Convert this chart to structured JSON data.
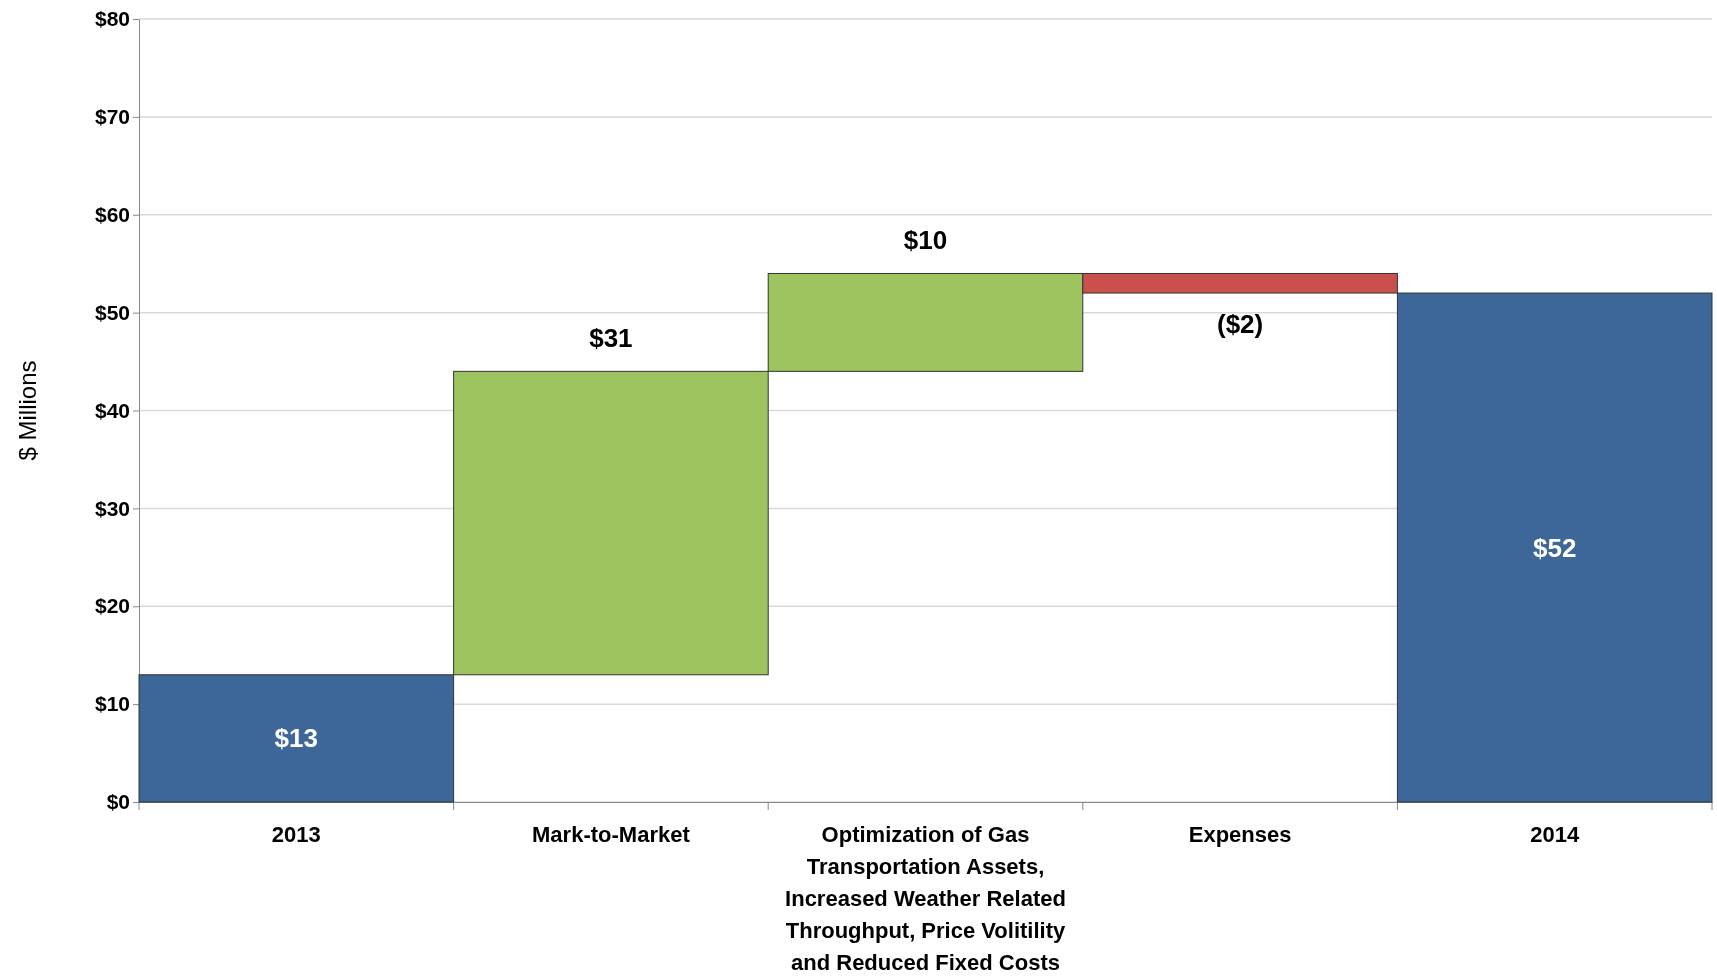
{
  "chart_data": {
    "type": "bar",
    "ylabel": "$ Millions",
    "categories": [
      "2013",
      "Mark-to-Market",
      "Optimization of Gas Transportation Assets, Increased Weather Related Throughput, Price Volitility and Reduced Fixed Costs",
      "Expenses",
      "2014"
    ],
    "values": [
      13,
      31,
      10,
      -2,
      52
    ],
    "base": [
      0,
      13,
      44,
      54,
      0
    ],
    "colors": [
      "#3d6699",
      "#9dc45f",
      "#9dc45f",
      "#c9504d",
      "#3d6699"
    ],
    "value_labels": [
      "$13",
      "$31",
      "$10",
      "($2)",
      "$52"
    ],
    "ylim": [
      0,
      80
    ],
    "yticks": [
      {
        "value": 0,
        "label": "$0"
      },
      {
        "value": 10,
        "label": "$10"
      },
      {
        "value": 20,
        "label": "$20"
      },
      {
        "value": 30,
        "label": "$30"
      },
      {
        "value": 40,
        "label": "$40"
      },
      {
        "value": 50,
        "label": "$50"
      },
      {
        "value": 60,
        "label": "$60"
      },
      {
        "value": 70,
        "label": "$70"
      },
      {
        "value": 80,
        "label": "$80"
      }
    ],
    "grid": "y"
  }
}
